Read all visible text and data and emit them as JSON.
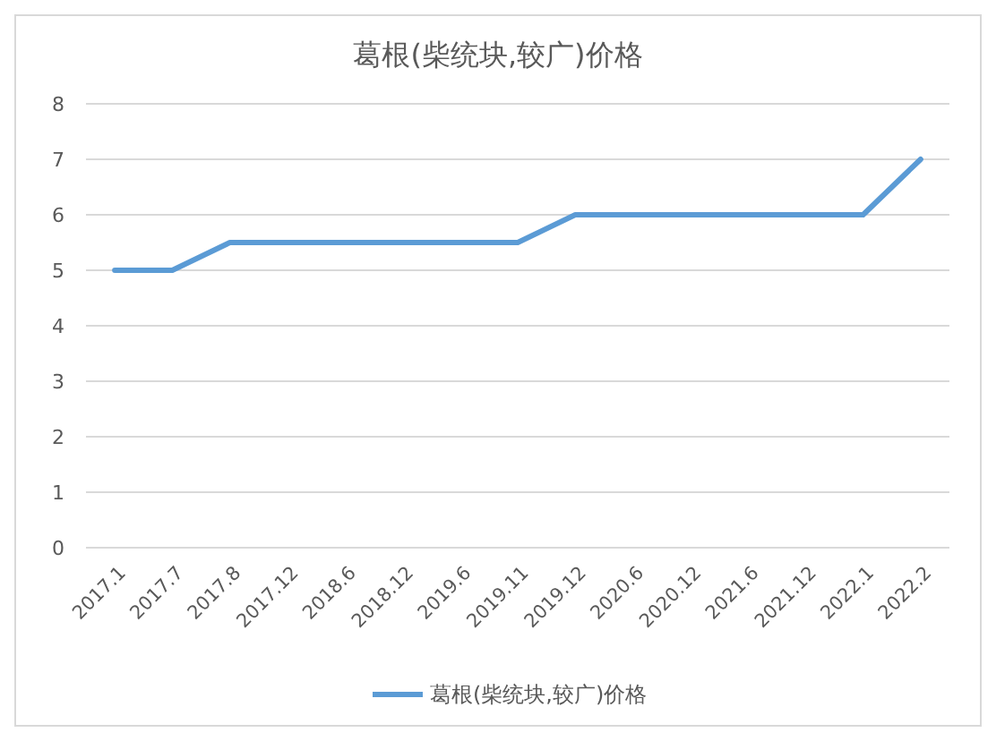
{
  "chart_data": {
    "type": "line",
    "title": "葛根(柴统块,较广)价格",
    "categories": [
      "2017.1",
      "2017.7",
      "2017.8",
      "2017.12",
      "2018.6",
      "2018.12",
      "2019.6",
      "2019.11",
      "2019.12",
      "2020.6",
      "2020.12",
      "2021.6",
      "2021.12",
      "2022.1",
      "2022.2"
    ],
    "series": [
      {
        "name": "葛根(柴统块,较广)价格",
        "color": "#5b9bd5",
        "values": [
          5,
          5,
          5.5,
          5.5,
          5.5,
          5.5,
          5.5,
          5.5,
          6,
          6,
          6,
          6,
          6,
          6,
          7
        ]
      }
    ],
    "ylim": [
      0,
      8
    ],
    "yticks": [
      0,
      1,
      2,
      3,
      4,
      5,
      6,
      7,
      8
    ],
    "grid": "y",
    "legend": "bottom",
    "marker": "none",
    "line_style": "solid"
  }
}
